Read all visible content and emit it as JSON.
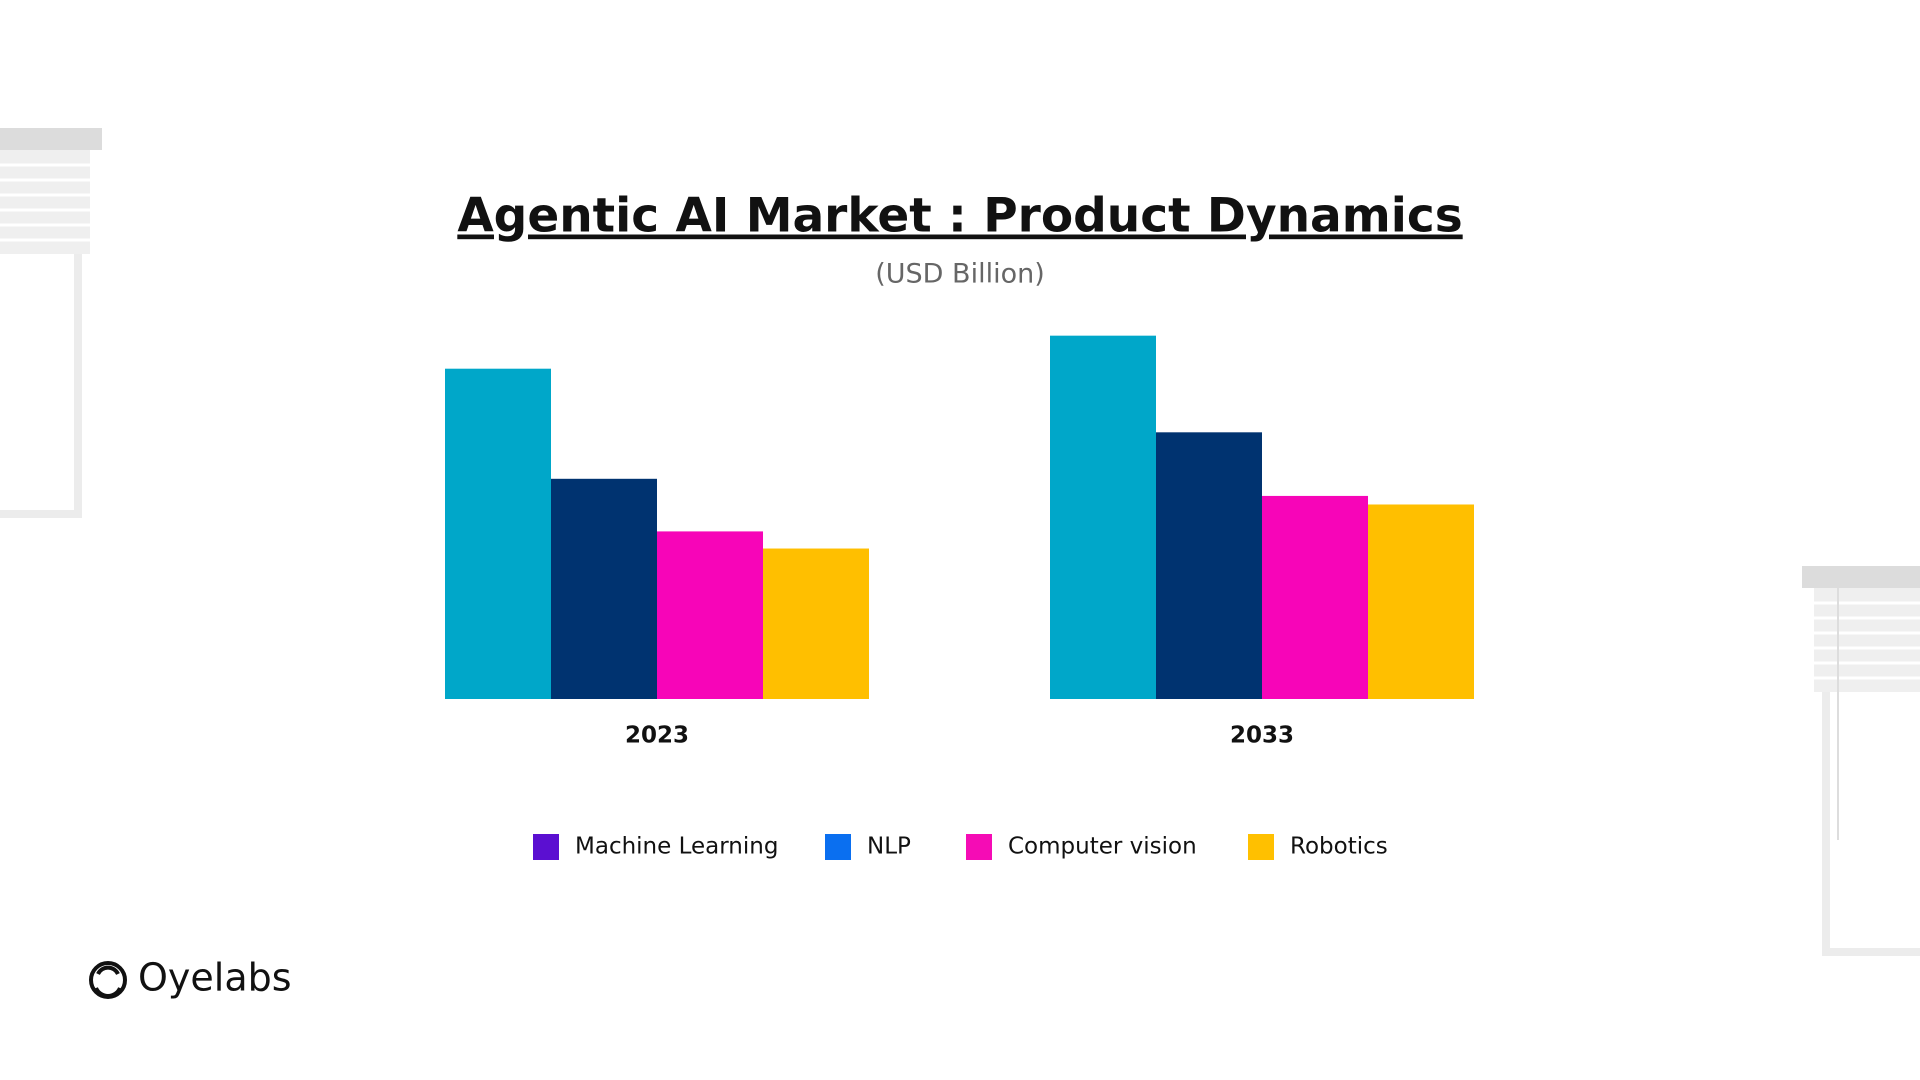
{
  "chart_data": {
    "type": "bar",
    "title": "Agentic AI Market : Product Dynamics",
    "subtitle": "(USD Billion)",
    "categories": [
      "2023",
      "2033"
    ],
    "series": [
      {
        "name": "Machine Learning",
        "color": "#00a7c9",
        "legend_color": "#5b0fd1",
        "values": [
          270,
          297
        ]
      },
      {
        "name": "NLP",
        "color": "#003370",
        "legend_color": "#0a6ff0",
        "values": [
          180,
          218
        ]
      },
      {
        "name": "Computer vision",
        "color": "#f705b8",
        "legend_color": "#f50cb5",
        "values": [
          137,
          166
        ]
      },
      {
        "name": "Robotics",
        "color": "#ffbf00",
        "legend_color": "#ffc000",
        "values": [
          123,
          159
        ]
      }
    ],
    "ylim": [
      0,
      300
    ],
    "brand": "Oyelabs"
  }
}
